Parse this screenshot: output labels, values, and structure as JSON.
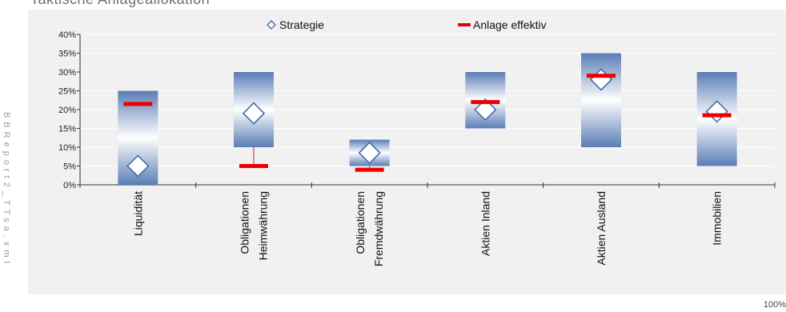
{
  "page": {
    "title": "Taktische Anlageallokation",
    "side_label": "BBReport2_TTsa.xml",
    "zoom": "100%"
  },
  "chart_data": {
    "type": "range-bar",
    "title": "Taktische Anlageallokation",
    "legend_position": "top-center",
    "ylim": [
      0,
      40
    ],
    "y_ticks": [
      "0%",
      "5%",
      "10%",
      "15%",
      "20%",
      "25%",
      "30%",
      "35%",
      "40%"
    ],
    "y_tick_values": [
      0,
      5,
      10,
      15,
      20,
      25,
      30,
      35,
      40
    ],
    "grid": true,
    "categories": [
      [
        "Liquidität"
      ],
      [
        "Obligationen",
        "Heimwährung"
      ],
      [
        "Obligationen",
        "Fremdwährung"
      ],
      [
        "Aktien Inland"
      ],
      [
        "Aktien Ausland"
      ],
      [
        "Immobilien"
      ]
    ],
    "ranges": [
      [
        0,
        25
      ],
      [
        10,
        30
      ],
      [
        5,
        12
      ],
      [
        15,
        30
      ],
      [
        10,
        35
      ],
      [
        5,
        30
      ]
    ],
    "series": [
      {
        "name": "Strategie",
        "marker": "diamond",
        "color": "#3a64a4",
        "values": [
          5,
          19,
          8.5,
          20,
          28,
          19.5
        ]
      },
      {
        "name": "Anlage effektiv",
        "marker": "dash",
        "color": "#ee0000",
        "values": [
          21.5,
          5,
          4,
          22,
          29,
          18.5
        ]
      }
    ],
    "colors": {
      "band_edge": "#5a7db5",
      "band_center": "#ffffff",
      "plot_bg": "#f1f1f1"
    }
  }
}
